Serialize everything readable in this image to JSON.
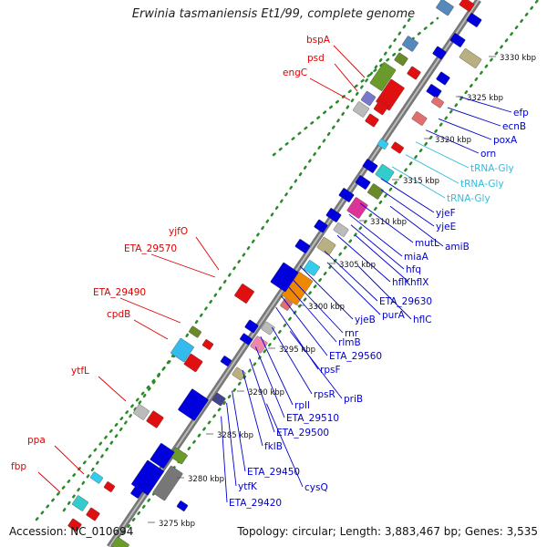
{
  "title": "Erwinia tasmaniensis Et1/99, complete genome",
  "accession": "Accession: NC_010694",
  "topology": "Topology: circular; Length: 3,883,467 bp; Genes: 3,535",
  "colors": {
    "left_label": "#e00000",
    "right_label": "#0000cc",
    "trna_label": "#33bbdd",
    "backbone": "#888888",
    "dots": "#2a8a2a"
  },
  "ticks": [
    "3330 kbp",
    "3325 kbp",
    "3320 kbp",
    "3315 kbp",
    "3310 kbp",
    "3305 kbp",
    "3300 kbp",
    "3295 kbp",
    "3290 kbp",
    "3285 kbp",
    "3280 kbp",
    "3275 kbp"
  ],
  "left_genes": [
    "bspA",
    "psd",
    "engC",
    "yjfO",
    "ETA_29570",
    "ETA_29490",
    "cpdB",
    "ytfL",
    "ppa",
    "fbp"
  ],
  "right_genes": [
    "efp",
    "ecnB",
    "poxA",
    "orn",
    "tRNA-Gly",
    "tRNA-Gly",
    "tRNA-Gly",
    "yjeF",
    "yjeE",
    "amiB",
    "mutL",
    "miaA",
    "hfq",
    "hflX",
    "hflK",
    "ETA_29630",
    "hflC",
    "purA",
    "yjeB",
    "rnr",
    "rlmB",
    "ETA_29560",
    "rpsF",
    "priB",
    "rpsR",
    "rplI",
    "ETA_29510",
    "ETA_29500",
    "fklB",
    "ETA_29450",
    "cysQ",
    "ytfK",
    "ETA_29420"
  ]
}
